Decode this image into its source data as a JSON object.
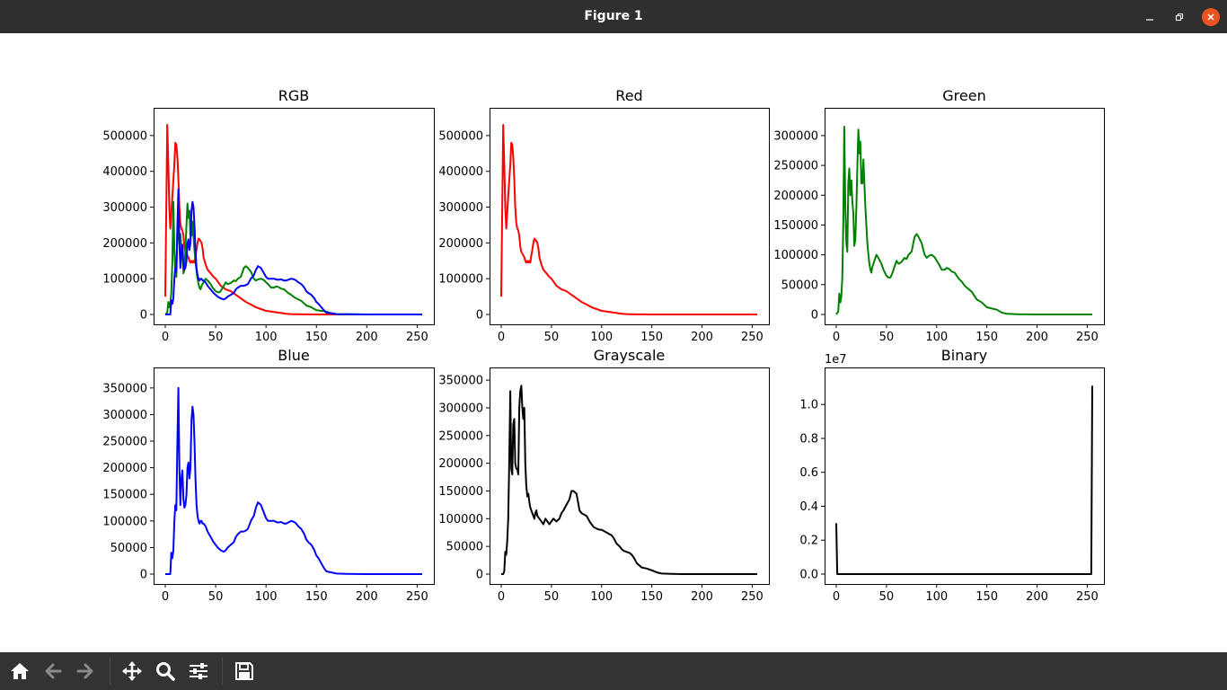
{
  "window": {
    "title": "Figure 1"
  },
  "figure": {
    "charts": [
      {
        "title": "RGB",
        "type": "line",
        "xlim": [
          0,
          255
        ],
        "ylim": [
          0,
          550000
        ],
        "xticks": [
          0,
          50,
          100,
          150,
          200,
          250
        ],
        "yticks": [
          0,
          100000,
          200000,
          300000,
          400000,
          500000
        ],
        "series_ids": [
          "red",
          "green",
          "blue"
        ]
      },
      {
        "title": "Red",
        "type": "line",
        "xlim": [
          0,
          255
        ],
        "ylim": [
          0,
          550000
        ],
        "xticks": [
          0,
          50,
          100,
          150,
          200,
          250
        ],
        "yticks": [
          0,
          100000,
          200000,
          300000,
          400000,
          500000
        ],
        "series_ids": [
          "red"
        ]
      },
      {
        "title": "Green",
        "type": "line",
        "xlim": [
          0,
          255
        ],
        "ylim": [
          0,
          330000
        ],
        "xticks": [
          0,
          50,
          100,
          150,
          200,
          250
        ],
        "yticks": [
          0,
          50000,
          100000,
          150000,
          200000,
          250000,
          300000
        ],
        "series_ids": [
          "green"
        ]
      },
      {
        "title": "Blue",
        "type": "line",
        "xlim": [
          0,
          255
        ],
        "ylim": [
          0,
          370000
        ],
        "xticks": [
          0,
          50,
          100,
          150,
          200,
          250
        ],
        "yticks": [
          0,
          50000,
          100000,
          150000,
          200000,
          250000,
          300000,
          350000
        ],
        "series_ids": [
          "blue"
        ]
      },
      {
        "title": "Grayscale",
        "type": "line",
        "xlim": [
          0,
          255
        ],
        "ylim": [
          0,
          355000
        ],
        "xticks": [
          0,
          50,
          100,
          150,
          200,
          250
        ],
        "yticks": [
          0,
          50000,
          100000,
          150000,
          200000,
          250000,
          300000,
          350000
        ],
        "series_ids": [
          "gray"
        ]
      },
      {
        "title": "Binary",
        "type": "line",
        "xlim": [
          0,
          255
        ],
        "ylim": [
          0,
          11600000
        ],
        "xticks": [
          0,
          50,
          100,
          150,
          200,
          250
        ],
        "yticks": [
          0,
          2000000,
          4000000,
          6000000,
          8000000,
          10000000
        ],
        "ytick_labels": [
          "0.0",
          "0.2",
          "0.4",
          "0.6",
          "0.8",
          "1.0"
        ],
        "offset_label": "1e7",
        "series_ids": [
          "binary"
        ]
      }
    ]
  },
  "chart_data": {
    "type": "line",
    "series": [
      {
        "id": "red",
        "color": "#ff0000",
        "x": [
          0,
          2,
          3,
          4,
          5,
          7,
          9,
          10,
          11,
          12,
          13,
          14,
          15,
          16,
          17,
          18,
          19,
          20,
          21,
          22,
          23,
          24,
          25,
          26,
          27,
          28,
          29,
          30,
          31,
          32,
          33,
          34,
          35,
          36,
          37,
          38,
          40,
          42,
          45,
          48,
          50,
          55,
          60,
          65,
          70,
          75,
          80,
          85,
          90,
          95,
          100,
          105,
          110,
          115,
          120,
          125,
          130,
          135,
          140,
          150,
          160,
          170,
          180,
          200,
          220,
          240,
          255
        ],
        "y": [
          50000,
          530000,
          420000,
          300000,
          240000,
          330000,
          420000,
          480000,
          475000,
          440000,
          380000,
          300000,
          255000,
          240000,
          235000,
          220000,
          190000,
          175000,
          170000,
          165000,
          160000,
          150000,
          145000,
          150000,
          145000,
          150000,
          145000,
          165000,
          180000,
          200000,
          212000,
          210000,
          205000,
          200000,
          185000,
          160000,
          140000,
          125000,
          115000,
          105000,
          100000,
          80000,
          70000,
          65000,
          55000,
          45000,
          35000,
          28000,
          20000,
          15000,
          10000,
          8000,
          6000,
          4000,
          2000,
          1000,
          500,
          300,
          200,
          100,
          50,
          0,
          0,
          0,
          0,
          0,
          0
        ]
      },
      {
        "id": "green",
        "color": "#008000",
        "x": [
          0,
          2,
          3,
          4,
          5,
          6,
          7,
          8,
          9,
          10,
          11,
          12,
          13,
          14,
          15,
          16,
          17,
          18,
          19,
          20,
          21,
          22,
          23,
          24,
          25,
          26,
          27,
          28,
          29,
          30,
          31,
          32,
          33,
          34,
          35,
          36,
          38,
          40,
          42,
          45,
          47,
          50,
          52,
          54,
          56,
          58,
          60,
          62,
          65,
          68,
          70,
          72,
          75,
          78,
          80,
          82,
          85,
          88,
          90,
          92,
          95,
          98,
          100,
          102,
          105,
          108,
          110,
          112,
          115,
          118,
          120,
          122,
          125,
          128,
          130,
          135,
          140,
          145,
          150,
          155,
          160,
          165,
          170,
          180,
          200,
          220,
          240,
          255
        ],
        "y": [
          0,
          5000,
          35000,
          20000,
          30000,
          60000,
          150000,
          315000,
          180000,
          120000,
          105000,
          220000,
          245000,
          200000,
          225000,
          190000,
          170000,
          115000,
          125000,
          180000,
          250000,
          310000,
          270000,
          290000,
          220000,
          220000,
          260000,
          220000,
          180000,
          150000,
          120000,
          100000,
          85000,
          75000,
          70000,
          80000,
          90000,
          100000,
          95000,
          85000,
          75000,
          65000,
          62000,
          62000,
          70000,
          80000,
          90000,
          85000,
          88000,
          95000,
          93000,
          100000,
          105000,
          130000,
          135000,
          130000,
          120000,
          100000,
          95000,
          98000,
          100000,
          96000,
          90000,
          85000,
          75000,
          75000,
          78000,
          77000,
          72000,
          70000,
          65000,
          60000,
          55000,
          48000,
          45000,
          38000,
          25000,
          20000,
          12000,
          10000,
          8000,
          3000,
          1000,
          500,
          0,
          0,
          0,
          0
        ]
      },
      {
        "id": "blue",
        "color": "#0000ff",
        "x": [
          0,
          3,
          5,
          6,
          7,
          8,
          9,
          10,
          11,
          12,
          13,
          14,
          15,
          16,
          17,
          18,
          19,
          20,
          21,
          22,
          23,
          24,
          25,
          26,
          27,
          28,
          29,
          30,
          31,
          32,
          33,
          34,
          35,
          36,
          37,
          38,
          40,
          42,
          45,
          48,
          50,
          52,
          55,
          58,
          60,
          62,
          65,
          68,
          70,
          72,
          75,
          78,
          80,
          82,
          85,
          88,
          90,
          92,
          95,
          98,
          100,
          102,
          105,
          108,
          110,
          112,
          115,
          118,
          120,
          122,
          125,
          128,
          130,
          132,
          135,
          138,
          140,
          142,
          145,
          148,
          150,
          152,
          155,
          158,
          160,
          170,
          180,
          200,
          220,
          240,
          255
        ],
        "y": [
          0,
          0,
          0,
          40000,
          30000,
          45000,
          100000,
          130000,
          120000,
          250000,
          350000,
          200000,
          130000,
          180000,
          195000,
          140000,
          125000,
          130000,
          150000,
          200000,
          210000,
          180000,
          200000,
          290000,
          315000,
          300000,
          250000,
          180000,
          130000,
          110000,
          100000,
          95000,
          100000,
          100000,
          95000,
          95000,
          90000,
          80000,
          70000,
          60000,
          55000,
          50000,
          45000,
          42000,
          45000,
          50000,
          55000,
          60000,
          70000,
          75000,
          80000,
          80000,
          82000,
          85000,
          100000,
          110000,
          125000,
          135000,
          130000,
          115000,
          105000,
          100000,
          100000,
          100000,
          98000,
          97000,
          98000,
          95000,
          95000,
          97000,
          100000,
          98000,
          95000,
          90000,
          85000,
          75000,
          65000,
          60000,
          55000,
          45000,
          35000,
          30000,
          20000,
          10000,
          5000,
          1000,
          500,
          0,
          0,
          0,
          0
        ]
      },
      {
        "id": "gray",
        "color": "#000000",
        "x": [
          0,
          2,
          3,
          4,
          5,
          6,
          7,
          8,
          9,
          10,
          11,
          12,
          13,
          14,
          15,
          16,
          17,
          18,
          19,
          20,
          21,
          22,
          23,
          24,
          25,
          26,
          27,
          28,
          29,
          30,
          31,
          32,
          33,
          34,
          35,
          36,
          38,
          40,
          42,
          44,
          46,
          48,
          50,
          52,
          55,
          58,
          60,
          62,
          65,
          68,
          70,
          72,
          75,
          78,
          80,
          82,
          85,
          88,
          90,
          92,
          95,
          98,
          100,
          102,
          105,
          108,
          110,
          112,
          115,
          118,
          120,
          122,
          125,
          128,
          130,
          132,
          135,
          138,
          140,
          142,
          145,
          148,
          150,
          155,
          160,
          170,
          180,
          200,
          220,
          240,
          255
        ],
        "y": [
          0,
          0,
          5000,
          40000,
          35000,
          60000,
          100000,
          200000,
          330000,
          190000,
          180000,
          270000,
          280000,
          200000,
          190000,
          190000,
          180000,
          300000,
          330000,
          340000,
          300000,
          280000,
          300000,
          200000,
          160000,
          140000,
          145000,
          130000,
          120000,
          115000,
          110000,
          105000,
          100000,
          110000,
          115000,
          105000,
          100000,
          95000,
          90000,
          100000,
          95000,
          90000,
          95000,
          100000,
          95000,
          100000,
          110000,
          115000,
          125000,
          135000,
          150000,
          150000,
          145000,
          115000,
          110000,
          108000,
          105000,
          95000,
          90000,
          85000,
          82000,
          80000,
          80000,
          78000,
          75000,
          72000,
          70000,
          65000,
          55000,
          50000,
          45000,
          42000,
          40000,
          38000,
          35000,
          30000,
          20000,
          15000,
          12000,
          11000,
          10000,
          8000,
          7000,
          3000,
          1000,
          500,
          0,
          0,
          0,
          0,
          0
        ]
      },
      {
        "id": "binary",
        "color": "#000000",
        "x": [
          0,
          1,
          2,
          253,
          254,
          255
        ],
        "y": [
          3000000,
          0,
          0,
          0,
          0,
          11100000
        ]
      }
    ]
  },
  "toolbar": {
    "buttons": [
      {
        "icon": "home-icon",
        "name": "home-button"
      },
      {
        "icon": "back-arrow-icon",
        "name": "back-button"
      },
      {
        "icon": "forward-arrow-icon",
        "name": "forward-button"
      },
      {
        "icon": "pan-move-icon",
        "name": "pan-button"
      },
      {
        "icon": "zoom-magnifier-icon",
        "name": "zoom-button"
      },
      {
        "icon": "configure-subplots-icon",
        "name": "configure-subplots-button"
      },
      {
        "icon": "save-floppy-icon",
        "name": "save-button"
      }
    ]
  },
  "colors": {
    "titlebar": "#2f2f2f",
    "toolbar": "#333333",
    "close_button": "#e95420"
  }
}
